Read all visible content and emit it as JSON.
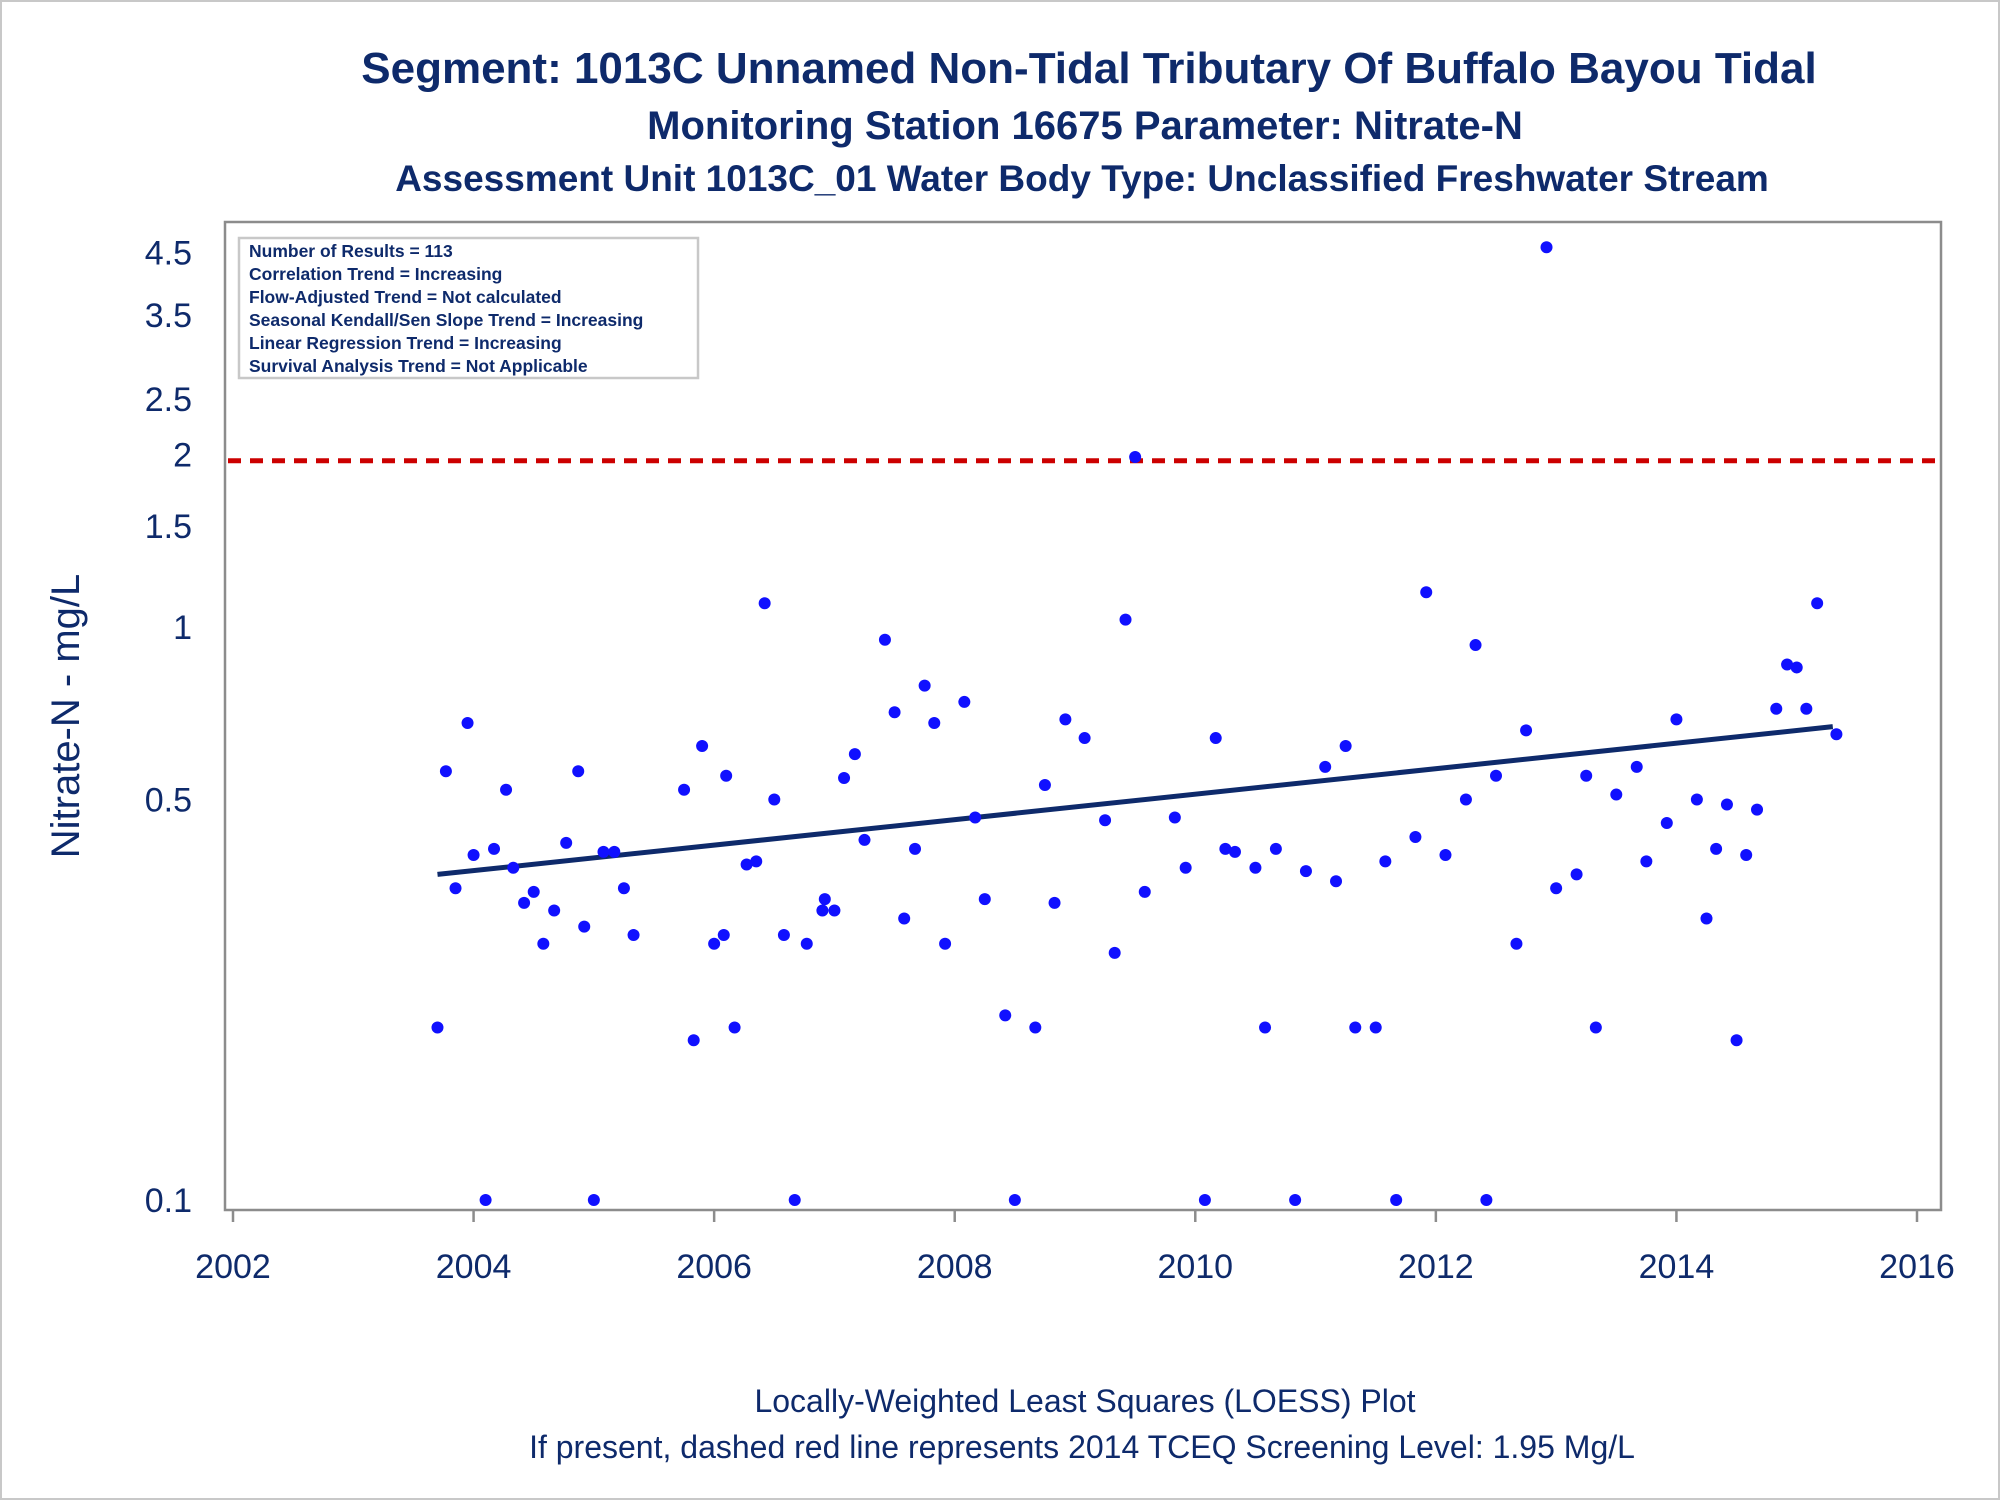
{
  "titles": {
    "line1": "Segment: 1013C  Unnamed Non-Tidal Tributary Of Buffalo Bayou Tidal",
    "line2": "Monitoring Station 16675 Parameter: Nitrate-N",
    "line3": "Assessment Unit 1013C_01   Water Body Type: Unclassified Freshwater Stream"
  },
  "footnotes": {
    "line1": "Locally-Weighted Least Squares (LOESS) Plot",
    "line2": "If present, dashed red line represents 2014 TCEQ Screening Level: 1.95 Mg/L"
  },
  "stats_box": [
    "Number of Results = 113",
    "Correlation Trend = Increasing",
    "Flow-Adjusted Trend = Not calculated",
    "Seasonal Kendall/Sen Slope Trend = Increasing",
    "Linear Regression Trend = Increasing",
    "Survival Analysis Trend = Not Applicable"
  ],
  "colors": {
    "text": "#0e2a6b",
    "points": "#1010ff",
    "trend": "#0e2a6b",
    "screening_line": "#cc0000",
    "frame": "#8c8c8c"
  },
  "chart_data": {
    "type": "scatter",
    "ylabel": "Nitrate-N - mg/L",
    "xlabel": "",
    "y_scale": "log",
    "xlim": [
      2002,
      2016
    ],
    "ylim": [
      0.095,
      5.2
    ],
    "x_ticks": [
      2002,
      2004,
      2006,
      2008,
      2010,
      2012,
      2014,
      2016
    ],
    "y_ticks": [
      {
        "value": 0.1,
        "label": "0.1"
      },
      {
        "value": 0.5,
        "label": "0.5"
      },
      {
        "value": 1,
        "label": "1"
      },
      {
        "value": 1.5,
        "label": "1.5"
      },
      {
        "value": 2,
        "label": "2"
      },
      {
        "value": 2.5,
        "label": "2.5"
      },
      {
        "value": 3,
        "label": ""
      },
      {
        "value": 3.5,
        "label": "3.5"
      },
      {
        "value": 4,
        "label": ""
      },
      {
        "value": 4.5,
        "label": "4.5"
      }
    ],
    "screening_level": 1.95,
    "trend_line": {
      "x": [
        2003.7,
        2015.3
      ],
      "y": [
        0.37,
        0.67
      ]
    },
    "points": [
      [
        2003.7,
        0.2
      ],
      [
        2003.77,
        0.56
      ],
      [
        2003.85,
        0.35
      ],
      [
        2003.95,
        0.68
      ],
      [
        2004.0,
        0.4
      ],
      [
        2004.1,
        0.1
      ],
      [
        2004.17,
        0.41
      ],
      [
        2004.27,
        0.52
      ],
      [
        2004.33,
        0.38
      ],
      [
        2004.42,
        0.33
      ],
      [
        2004.5,
        0.345
      ],
      [
        2004.58,
        0.28
      ],
      [
        2004.67,
        0.32
      ],
      [
        2004.77,
        0.42
      ],
      [
        2004.87,
        0.56
      ],
      [
        2004.92,
        0.3
      ],
      [
        2005.0,
        0.1
      ],
      [
        2005.08,
        0.405
      ],
      [
        2005.17,
        0.405
      ],
      [
        2005.25,
        0.35
      ],
      [
        2005.33,
        0.29
      ],
      [
        2005.75,
        0.52
      ],
      [
        2005.83,
        0.19
      ],
      [
        2005.9,
        0.62
      ],
      [
        2006.0,
        0.28
      ],
      [
        2006.08,
        0.29
      ],
      [
        2006.1,
        0.55
      ],
      [
        2006.17,
        0.2
      ],
      [
        2006.27,
        0.385
      ],
      [
        2006.35,
        0.39
      ],
      [
        2006.42,
        1.1
      ],
      [
        2006.5,
        0.5
      ],
      [
        2006.58,
        0.29
      ],
      [
        2006.67,
        0.1
      ],
      [
        2006.77,
        0.28
      ],
      [
        2006.9,
        0.32
      ],
      [
        2006.92,
        0.335
      ],
      [
        2007.0,
        0.32
      ],
      [
        2007.08,
        0.545
      ],
      [
        2007.17,
        0.6
      ],
      [
        2007.25,
        0.425
      ],
      [
        2007.42,
        0.95
      ],
      [
        2007.5,
        0.71
      ],
      [
        2007.58,
        0.31
      ],
      [
        2007.67,
        0.41
      ],
      [
        2007.75,
        0.79
      ],
      [
        2007.83,
        0.68
      ],
      [
        2007.92,
        0.28
      ],
      [
        2008.08,
        0.74
      ],
      [
        2008.17,
        0.465
      ],
      [
        2008.25,
        0.335
      ],
      [
        2008.42,
        0.21
      ],
      [
        2008.5,
        0.1
      ],
      [
        2008.67,
        0.2
      ],
      [
        2008.75,
        0.53
      ],
      [
        2008.83,
        0.33
      ],
      [
        2008.92,
        0.69
      ],
      [
        2009.08,
        0.64
      ],
      [
        2009.25,
        0.46
      ],
      [
        2009.33,
        0.27
      ],
      [
        2009.42,
        1.03
      ],
      [
        2009.5,
        1.98
      ],
      [
        2009.58,
        0.345
      ],
      [
        2009.83,
        0.465
      ],
      [
        2009.92,
        0.38
      ],
      [
        2010.08,
        0.1
      ],
      [
        2010.17,
        0.64
      ],
      [
        2010.25,
        0.41
      ],
      [
        2010.33,
        0.405
      ],
      [
        2010.5,
        0.38
      ],
      [
        2010.58,
        0.2
      ],
      [
        2010.67,
        0.41
      ],
      [
        2010.83,
        0.1
      ],
      [
        2010.92,
        0.375
      ],
      [
        2011.08,
        0.57
      ],
      [
        2011.17,
        0.36
      ],
      [
        2011.25,
        0.62
      ],
      [
        2011.33,
        0.2
      ],
      [
        2011.5,
        0.2
      ],
      [
        2011.58,
        0.39
      ],
      [
        2011.67,
        0.1
      ],
      [
        2011.83,
        0.43
      ],
      [
        2011.92,
        1.15
      ],
      [
        2012.08,
        0.4
      ],
      [
        2012.25,
        0.5
      ],
      [
        2012.33,
        0.93
      ],
      [
        2012.42,
        0.1
      ],
      [
        2012.5,
        0.55
      ],
      [
        2012.67,
        0.28
      ],
      [
        2012.75,
        0.66
      ],
      [
        2012.92,
        4.6
      ],
      [
        2013.0,
        0.35
      ],
      [
        2013.17,
        0.37
      ],
      [
        2013.25,
        0.55
      ],
      [
        2013.33,
        0.2
      ],
      [
        2013.5,
        0.51
      ],
      [
        2013.67,
        0.57
      ],
      [
        2013.75,
        0.39
      ],
      [
        2013.92,
        0.455
      ],
      [
        2014.0,
        0.69
      ],
      [
        2014.17,
        0.5
      ],
      [
        2014.25,
        0.31
      ],
      [
        2014.33,
        0.41
      ],
      [
        2014.42,
        0.49
      ],
      [
        2014.5,
        0.19
      ],
      [
        2014.58,
        0.4
      ],
      [
        2014.67,
        0.48
      ],
      [
        2014.83,
        0.72
      ],
      [
        2014.92,
        0.86
      ],
      [
        2015.0,
        0.85
      ],
      [
        2015.08,
        0.72
      ],
      [
        2015.17,
        1.1
      ],
      [
        2015.33,
        0.65
      ]
    ]
  }
}
